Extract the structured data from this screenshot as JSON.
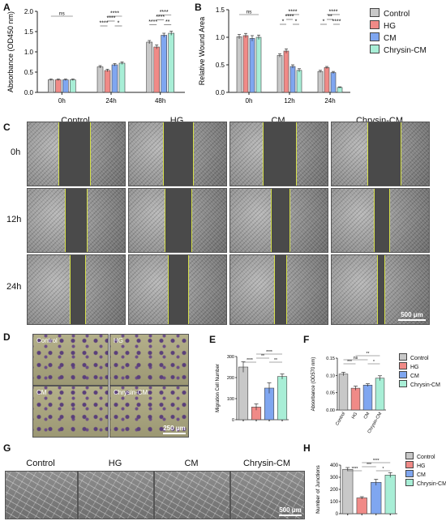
{
  "colors": {
    "Control": "#c8c8c8",
    "HG": "#f08a87",
    "CM": "#7fa6f0",
    "Chrysin-CM": "#a8eed6"
  },
  "panels": {
    "A": {
      "letter": "A"
    },
    "B": {
      "letter": "B"
    },
    "C": {
      "letter": "C"
    },
    "D": {
      "letter": "D"
    },
    "E": {
      "letter": "E"
    },
    "F": {
      "letter": "F"
    },
    "G": {
      "letter": "G"
    },
    "H": {
      "letter": "H"
    }
  },
  "legend_main": [
    "Control",
    "HG",
    "CM",
    "Chrysin-CM"
  ],
  "chart_data": [
    {
      "id": "A",
      "type": "bar",
      "categories": [
        "0h",
        "24h",
        "48h"
      ],
      "ylabel": "Absorbance (OD450 nm)",
      "ylim": [
        0,
        2.0
      ],
      "yticks": [
        "0.0",
        "0.5",
        "1.0",
        "1.5",
        "2.0"
      ],
      "series": [
        {
          "name": "Control",
          "values": [
            0.31,
            0.63,
            1.24
          ],
          "errors": [
            0.02,
            0.03,
            0.04
          ]
        },
        {
          "name": "HG",
          "values": [
            0.31,
            0.54,
            1.12
          ],
          "errors": [
            0.02,
            0.03,
            0.05
          ]
        },
        {
          "name": "CM",
          "values": [
            0.31,
            0.68,
            1.41
          ],
          "errors": [
            0.02,
            0.03,
            0.05
          ]
        },
        {
          "name": "Chrysin-CM",
          "values": [
            0.31,
            0.72,
            1.46
          ],
          "errors": [
            0.02,
            0.03,
            0.05
          ]
        }
      ],
      "sig": [
        {
          "g": 0,
          "from": 0,
          "to": 3,
          "row": 1,
          "label": "ns"
        },
        {
          "g": 1,
          "from": 0,
          "to": 1,
          "row": 3,
          "label": "****"
        },
        {
          "g": 1,
          "from": 1,
          "to": 2,
          "row": 2,
          "label": "****"
        },
        {
          "g": 1,
          "from": 1,
          "to": 3,
          "row": 1,
          "label": "****"
        },
        {
          "g": 1,
          "from": 2,
          "to": 3,
          "row": 3,
          "label": "*"
        },
        {
          "g": 2,
          "from": 0,
          "to": 1,
          "row": 3,
          "label": "****"
        },
        {
          "g": 2,
          "from": 1,
          "to": 2,
          "row": 2,
          "label": "****"
        },
        {
          "g": 2,
          "from": 1,
          "to": 3,
          "row": 1,
          "label": "****"
        },
        {
          "g": 2,
          "from": 2,
          "to": 3,
          "row": 3,
          "label": "**"
        }
      ]
    },
    {
      "id": "B",
      "type": "bar",
      "categories": [
        "0h",
        "12h",
        "24h"
      ],
      "ylabel": "Relative Wound Area",
      "ylim": [
        0,
        1.5
      ],
      "yticks": [
        "0.0",
        "0.5",
        "1.0",
        "1.5"
      ],
      "series": [
        {
          "name": "Control",
          "values": [
            1.01,
            0.67,
            0.38
          ],
          "errors": [
            0.04,
            0.03,
            0.02
          ]
        },
        {
          "name": "HG",
          "values": [
            1.03,
            0.75,
            0.45
          ],
          "errors": [
            0.04,
            0.04,
            0.02
          ]
        },
        {
          "name": "CM",
          "values": [
            0.98,
            0.47,
            0.36
          ],
          "errors": [
            0.05,
            0.03,
            0.02
          ]
        },
        {
          "name": "Chrysin-CM",
          "values": [
            1.0,
            0.4,
            0.09
          ],
          "errors": [
            0.04,
            0.03,
            0.01
          ]
        }
      ],
      "sig": [
        {
          "g": 0,
          "from": 0,
          "to": 3,
          "row": 1,
          "label": "ns"
        },
        {
          "g": 1,
          "from": 1,
          "to": 3,
          "row": 1,
          "label": "****"
        },
        {
          "g": 1,
          "from": 1,
          "to": 2,
          "row": 2,
          "label": "****"
        },
        {
          "g": 1,
          "from": 0,
          "to": 1,
          "row": 3,
          "label": "*"
        },
        {
          "g": 1,
          "from": 2,
          "to": 3,
          "row": 3,
          "label": "*"
        },
        {
          "g": 2,
          "from": 1,
          "to": 3,
          "row": 1,
          "label": "****"
        },
        {
          "g": 2,
          "from": 1,
          "to": 2,
          "row": 2,
          "label": "**"
        },
        {
          "g": 2,
          "from": 0,
          "to": 1,
          "row": 3,
          "label": "*"
        },
        {
          "g": 2,
          "from": 2,
          "to": 3,
          "row": 3,
          "label": "****"
        }
      ]
    },
    {
      "id": "E",
      "type": "bar",
      "categories": [
        "Control",
        "HG",
        "CM",
        "Chrysin-CM"
      ],
      "ylabel": "Migration Cell Number",
      "ylim": [
        0,
        300
      ],
      "yticks": [
        "0",
        "100",
        "200",
        "300"
      ],
      "values": [
        250,
        60,
        150,
        205
      ],
      "errors": [
        25,
        15,
        25,
        12
      ],
      "sig": [
        {
          "from": 0,
          "to": 1,
          "row": 3,
          "label": "****"
        },
        {
          "from": 1,
          "to": 2,
          "row": 2,
          "label": "**"
        },
        {
          "from": 1,
          "to": 3,
          "row": 1,
          "label": "****"
        },
        {
          "from": 2,
          "to": 3,
          "row": 3,
          "label": "**"
        }
      ]
    },
    {
      "id": "F",
      "type": "bar",
      "categories": [
        "Control",
        "HG",
        "CM",
        "Chrysin-CM"
      ],
      "ylabel": "Absorbance (OD570 nm)",
      "ylim": [
        0,
        0.15
      ],
      "yticks": [
        "0.00",
        "0.05",
        "0.10",
        "0.15"
      ],
      "values": [
        0.104,
        0.063,
        0.072,
        0.092
      ],
      "errors": [
        0.005,
        0.006,
        0.004,
        0.007
      ],
      "sig": [
        {
          "from": 0,
          "to": 1,
          "row": 3,
          "label": "***"
        },
        {
          "from": 1,
          "to": 3,
          "row": 1,
          "label": "**"
        },
        {
          "from": 0,
          "to": 2,
          "row": 2,
          "label": "ns"
        },
        {
          "from": 2,
          "to": 3,
          "row": 3,
          "label": "*"
        }
      ]
    },
    {
      "id": "H",
      "type": "bar",
      "categories": [
        "Control",
        "HG",
        "CM",
        "Chrysin-CM"
      ],
      "ylabel": "Number of Junctions",
      "ylim": [
        0,
        400
      ],
      "yticks": [
        "0",
        "100",
        "200",
        "300",
        "400"
      ],
      "values": [
        365,
        130,
        258,
        318
      ],
      "errors": [
        15,
        10,
        25,
        20
      ],
      "sig": [
        {
          "from": 0,
          "to": 1,
          "row": 3,
          "label": "****"
        },
        {
          "from": 1,
          "to": 2,
          "row": 2,
          "label": "***"
        },
        {
          "from": 1,
          "to": 3,
          "row": 1,
          "label": "****"
        },
        {
          "from": 2,
          "to": 3,
          "row": 3,
          "label": "*"
        }
      ]
    }
  ],
  "panelC": {
    "columns": [
      "Control",
      "HG",
      "CM",
      "Chrysin-CM"
    ],
    "rows": [
      "0h",
      "12h",
      "24h"
    ],
    "scale": "500 μm"
  },
  "panelD": {
    "labels": [
      "Control",
      "HG",
      "CM",
      "Chrysin-CM"
    ],
    "scale": "250 μm"
  },
  "panelG": {
    "columns": [
      "Control",
      "HG",
      "CM",
      "Chrysin-CM"
    ],
    "scale": "500 μm"
  }
}
